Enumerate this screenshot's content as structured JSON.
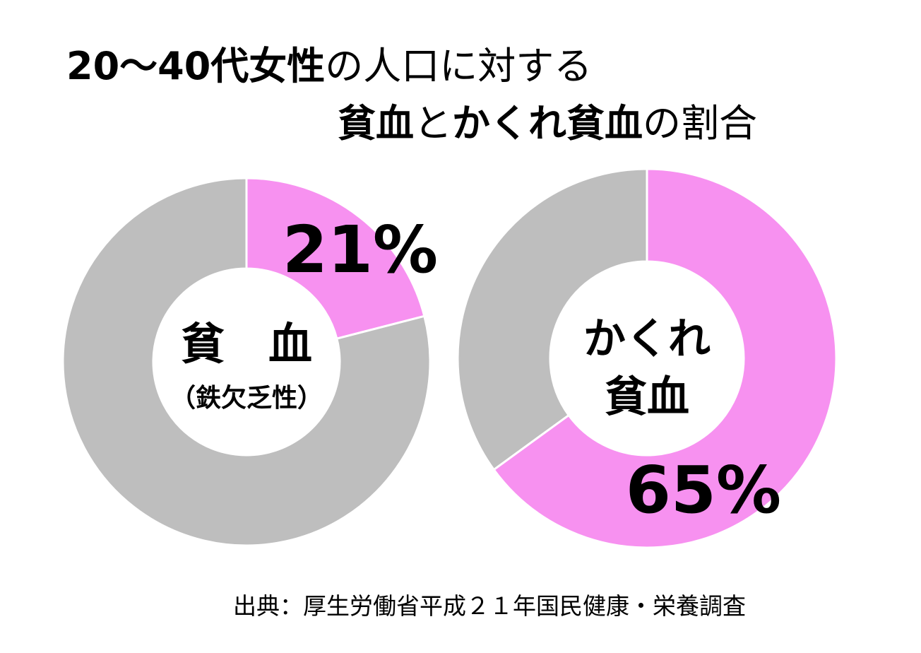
{
  "title": {
    "line1": [
      {
        "text": "20～40代女性",
        "bold": true
      },
      {
        "text": "の人口に対する",
        "bold": false
      }
    ],
    "line2": [
      {
        "text": "貧血",
        "bold": true
      },
      {
        "text": "と",
        "bold": false
      },
      {
        "text": "かくれ貧血",
        "bold": true
      },
      {
        "text": "の割合",
        "bold": false
      }
    ]
  },
  "colors": {
    "highlight": "#f791f0",
    "rest": "#bebebe",
    "separator": "#ffffff"
  },
  "chart_data": [
    {
      "type": "pie",
      "donut": true,
      "center_label": [
        "貧　血",
        "（鉄欠乏性）"
      ],
      "slices": [
        {
          "value": 21,
          "color": "#f791f0",
          "label": "21%"
        },
        {
          "value": 79,
          "color": "#bebebe",
          "label": ""
        }
      ]
    },
    {
      "type": "pie",
      "donut": true,
      "center_label": [
        "かくれ",
        "貧血"
      ],
      "slices": [
        {
          "value": 65,
          "color": "#f791f0",
          "label": "65%"
        },
        {
          "value": 35,
          "color": "#bebebe",
          "label": ""
        }
      ]
    }
  ],
  "source": "出典：厚生労働省平成２１年国民健康・栄養調査"
}
